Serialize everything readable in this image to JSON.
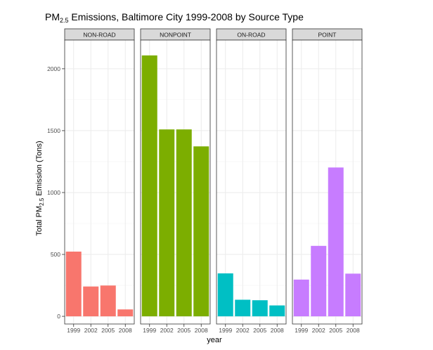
{
  "chart_data": {
    "type": "bar",
    "title": {
      "prefix": "PM",
      "subscript": "2.5",
      "suffix": " Emissions, Baltimore City 1999-2008 by Source Type"
    },
    "xlabel": "year",
    "ylabel": {
      "prefix": "Total PM",
      "subscript": "2.5",
      "suffix": " Emission (Tons)"
    },
    "categories": [
      "1999",
      "2002",
      "2005",
      "2008"
    ],
    "yticks": [
      0,
      500,
      1000,
      1500,
      2000
    ],
    "ylim": [
      -62,
      2232
    ],
    "grid": true,
    "legend": "none",
    "panels": [
      {
        "name": "NON-ROAD",
        "color": "#F8766D",
        "values": [
          522.9,
          241.0,
          248.9,
          55.8
        ]
      },
      {
        "name": "NONPOINT",
        "color": "#7CAE00",
        "values": [
          2108.0,
          1510.0,
          1510.0,
          1373.0
        ]
      },
      {
        "name": "ON-ROAD",
        "color": "#00BFC4",
        "values": [
          347.0,
          134.0,
          130.0,
          88.0
        ]
      },
      {
        "name": "POINT",
        "color": "#C77CFF",
        "values": [
          296.8,
          569.3,
          1202.5,
          344.9
        ]
      }
    ]
  }
}
